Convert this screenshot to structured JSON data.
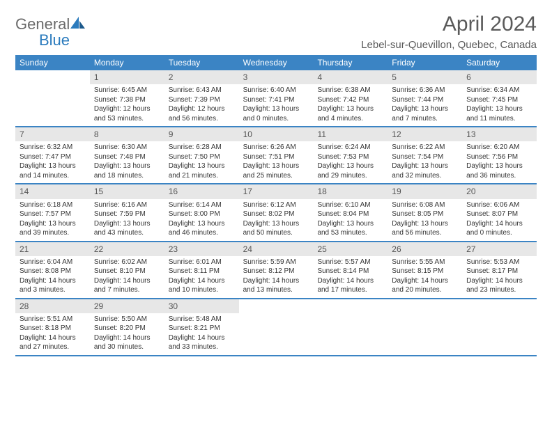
{
  "brand": {
    "name_part1": "General",
    "name_part2": "Blue",
    "icon_color": "#2b7bbd"
  },
  "title": "April 2024",
  "location": "Lebel-sur-Quevillon, Quebec, Canada",
  "colors": {
    "header_bg": "#3b84c4",
    "header_text": "#ffffff",
    "daynum_bg": "#e7e7e7",
    "border": "#3b84c4",
    "body_text": "#333333",
    "title_text": "#5a5a5a",
    "logo_gray": "#6b6b6b"
  },
  "weekdays": [
    "Sunday",
    "Monday",
    "Tuesday",
    "Wednesday",
    "Thursday",
    "Friday",
    "Saturday"
  ],
  "weeks": [
    [
      {
        "day": "",
        "sunrise": "",
        "sunset": "",
        "daylight1": "",
        "daylight2": ""
      },
      {
        "day": "1",
        "sunrise": "Sunrise: 6:45 AM",
        "sunset": "Sunset: 7:38 PM",
        "daylight1": "Daylight: 12 hours",
        "daylight2": "and 53 minutes."
      },
      {
        "day": "2",
        "sunrise": "Sunrise: 6:43 AM",
        "sunset": "Sunset: 7:39 PM",
        "daylight1": "Daylight: 12 hours",
        "daylight2": "and 56 minutes."
      },
      {
        "day": "3",
        "sunrise": "Sunrise: 6:40 AM",
        "sunset": "Sunset: 7:41 PM",
        "daylight1": "Daylight: 13 hours",
        "daylight2": "and 0 minutes."
      },
      {
        "day": "4",
        "sunrise": "Sunrise: 6:38 AM",
        "sunset": "Sunset: 7:42 PM",
        "daylight1": "Daylight: 13 hours",
        "daylight2": "and 4 minutes."
      },
      {
        "day": "5",
        "sunrise": "Sunrise: 6:36 AM",
        "sunset": "Sunset: 7:44 PM",
        "daylight1": "Daylight: 13 hours",
        "daylight2": "and 7 minutes."
      },
      {
        "day": "6",
        "sunrise": "Sunrise: 6:34 AM",
        "sunset": "Sunset: 7:45 PM",
        "daylight1": "Daylight: 13 hours",
        "daylight2": "and 11 minutes."
      }
    ],
    [
      {
        "day": "7",
        "sunrise": "Sunrise: 6:32 AM",
        "sunset": "Sunset: 7:47 PM",
        "daylight1": "Daylight: 13 hours",
        "daylight2": "and 14 minutes."
      },
      {
        "day": "8",
        "sunrise": "Sunrise: 6:30 AM",
        "sunset": "Sunset: 7:48 PM",
        "daylight1": "Daylight: 13 hours",
        "daylight2": "and 18 minutes."
      },
      {
        "day": "9",
        "sunrise": "Sunrise: 6:28 AM",
        "sunset": "Sunset: 7:50 PM",
        "daylight1": "Daylight: 13 hours",
        "daylight2": "and 21 minutes."
      },
      {
        "day": "10",
        "sunrise": "Sunrise: 6:26 AM",
        "sunset": "Sunset: 7:51 PM",
        "daylight1": "Daylight: 13 hours",
        "daylight2": "and 25 minutes."
      },
      {
        "day": "11",
        "sunrise": "Sunrise: 6:24 AM",
        "sunset": "Sunset: 7:53 PM",
        "daylight1": "Daylight: 13 hours",
        "daylight2": "and 29 minutes."
      },
      {
        "day": "12",
        "sunrise": "Sunrise: 6:22 AM",
        "sunset": "Sunset: 7:54 PM",
        "daylight1": "Daylight: 13 hours",
        "daylight2": "and 32 minutes."
      },
      {
        "day": "13",
        "sunrise": "Sunrise: 6:20 AM",
        "sunset": "Sunset: 7:56 PM",
        "daylight1": "Daylight: 13 hours",
        "daylight2": "and 36 minutes."
      }
    ],
    [
      {
        "day": "14",
        "sunrise": "Sunrise: 6:18 AM",
        "sunset": "Sunset: 7:57 PM",
        "daylight1": "Daylight: 13 hours",
        "daylight2": "and 39 minutes."
      },
      {
        "day": "15",
        "sunrise": "Sunrise: 6:16 AM",
        "sunset": "Sunset: 7:59 PM",
        "daylight1": "Daylight: 13 hours",
        "daylight2": "and 43 minutes."
      },
      {
        "day": "16",
        "sunrise": "Sunrise: 6:14 AM",
        "sunset": "Sunset: 8:00 PM",
        "daylight1": "Daylight: 13 hours",
        "daylight2": "and 46 minutes."
      },
      {
        "day": "17",
        "sunrise": "Sunrise: 6:12 AM",
        "sunset": "Sunset: 8:02 PM",
        "daylight1": "Daylight: 13 hours",
        "daylight2": "and 50 minutes."
      },
      {
        "day": "18",
        "sunrise": "Sunrise: 6:10 AM",
        "sunset": "Sunset: 8:04 PM",
        "daylight1": "Daylight: 13 hours",
        "daylight2": "and 53 minutes."
      },
      {
        "day": "19",
        "sunrise": "Sunrise: 6:08 AM",
        "sunset": "Sunset: 8:05 PM",
        "daylight1": "Daylight: 13 hours",
        "daylight2": "and 56 minutes."
      },
      {
        "day": "20",
        "sunrise": "Sunrise: 6:06 AM",
        "sunset": "Sunset: 8:07 PM",
        "daylight1": "Daylight: 14 hours",
        "daylight2": "and 0 minutes."
      }
    ],
    [
      {
        "day": "21",
        "sunrise": "Sunrise: 6:04 AM",
        "sunset": "Sunset: 8:08 PM",
        "daylight1": "Daylight: 14 hours",
        "daylight2": "and 3 minutes."
      },
      {
        "day": "22",
        "sunrise": "Sunrise: 6:02 AM",
        "sunset": "Sunset: 8:10 PM",
        "daylight1": "Daylight: 14 hours",
        "daylight2": "and 7 minutes."
      },
      {
        "day": "23",
        "sunrise": "Sunrise: 6:01 AM",
        "sunset": "Sunset: 8:11 PM",
        "daylight1": "Daylight: 14 hours",
        "daylight2": "and 10 minutes."
      },
      {
        "day": "24",
        "sunrise": "Sunrise: 5:59 AM",
        "sunset": "Sunset: 8:12 PM",
        "daylight1": "Daylight: 14 hours",
        "daylight2": "and 13 minutes."
      },
      {
        "day": "25",
        "sunrise": "Sunrise: 5:57 AM",
        "sunset": "Sunset: 8:14 PM",
        "daylight1": "Daylight: 14 hours",
        "daylight2": "and 17 minutes."
      },
      {
        "day": "26",
        "sunrise": "Sunrise: 5:55 AM",
        "sunset": "Sunset: 8:15 PM",
        "daylight1": "Daylight: 14 hours",
        "daylight2": "and 20 minutes."
      },
      {
        "day": "27",
        "sunrise": "Sunrise: 5:53 AM",
        "sunset": "Sunset: 8:17 PM",
        "daylight1": "Daylight: 14 hours",
        "daylight2": "and 23 minutes."
      }
    ],
    [
      {
        "day": "28",
        "sunrise": "Sunrise: 5:51 AM",
        "sunset": "Sunset: 8:18 PM",
        "daylight1": "Daylight: 14 hours",
        "daylight2": "and 27 minutes."
      },
      {
        "day": "29",
        "sunrise": "Sunrise: 5:50 AM",
        "sunset": "Sunset: 8:20 PM",
        "daylight1": "Daylight: 14 hours",
        "daylight2": "and 30 minutes."
      },
      {
        "day": "30",
        "sunrise": "Sunrise: 5:48 AM",
        "sunset": "Sunset: 8:21 PM",
        "daylight1": "Daylight: 14 hours",
        "daylight2": "and 33 minutes."
      },
      {
        "day": "",
        "sunrise": "",
        "sunset": "",
        "daylight1": "",
        "daylight2": ""
      },
      {
        "day": "",
        "sunrise": "",
        "sunset": "",
        "daylight1": "",
        "daylight2": ""
      },
      {
        "day": "",
        "sunrise": "",
        "sunset": "",
        "daylight1": "",
        "daylight2": ""
      },
      {
        "day": "",
        "sunrise": "",
        "sunset": "",
        "daylight1": "",
        "daylight2": ""
      }
    ]
  ]
}
